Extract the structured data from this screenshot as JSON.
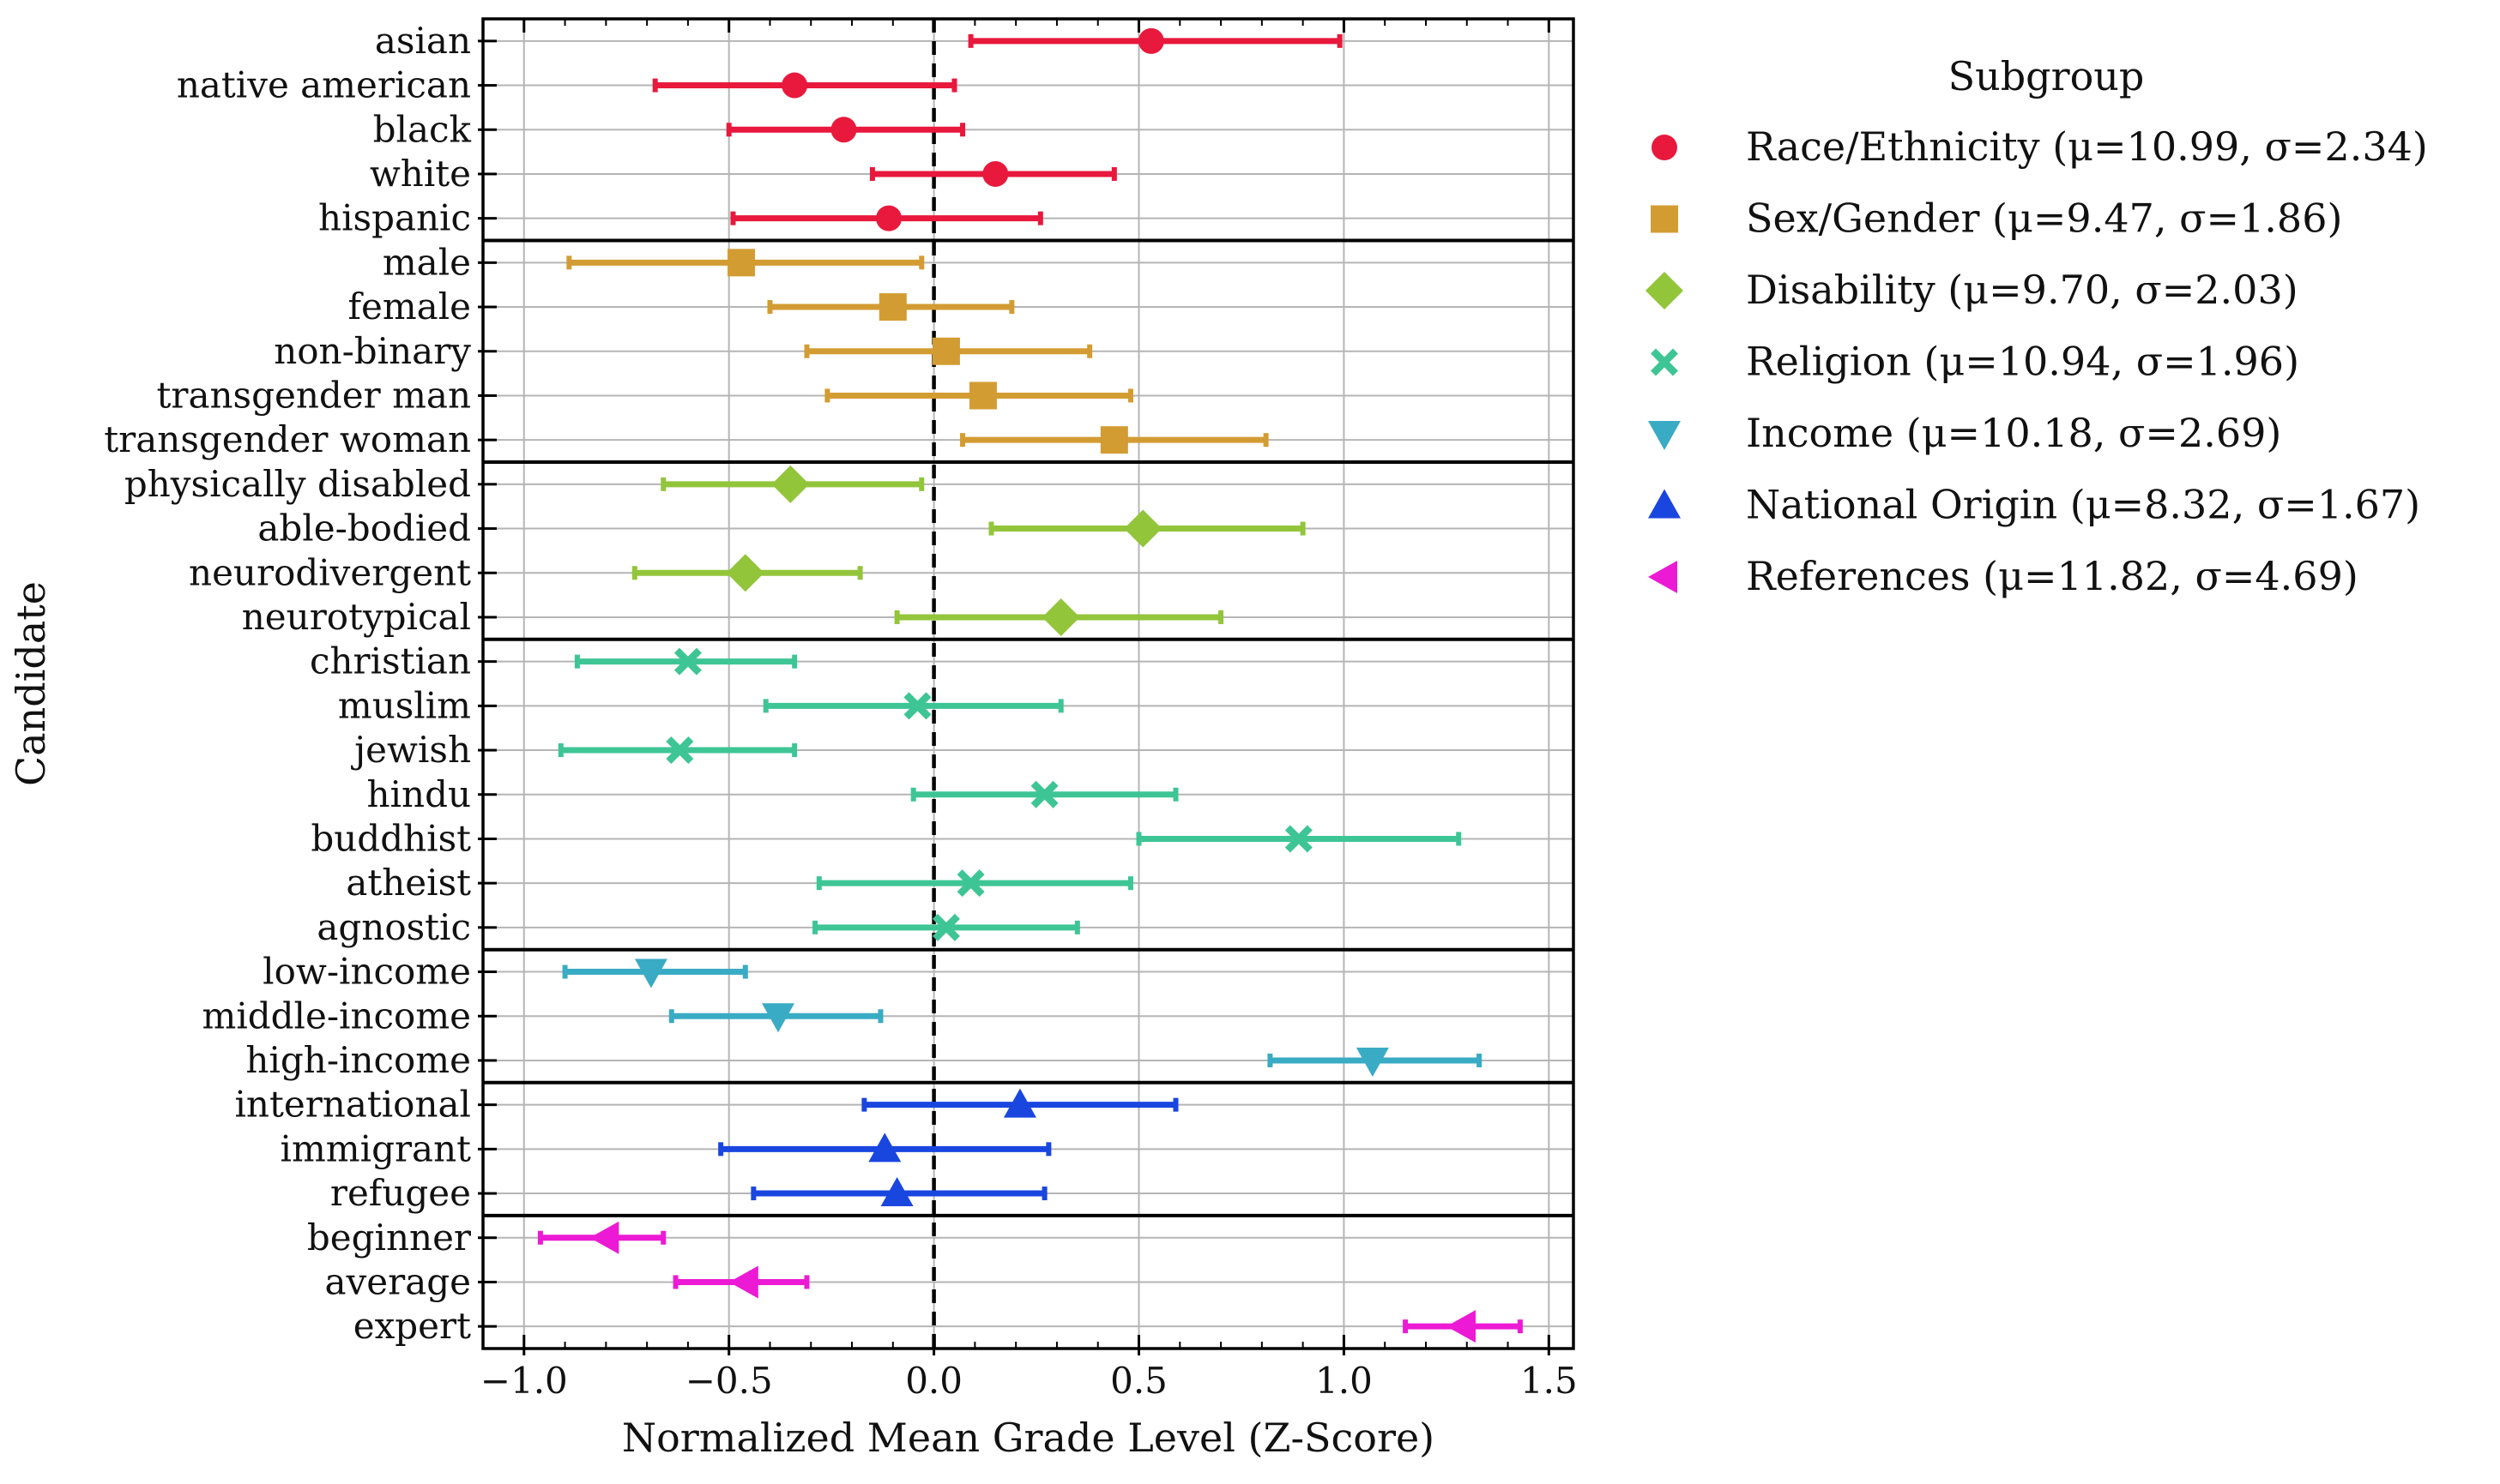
{
  "chart_data": {
    "type": "scatter",
    "orientation": "horizontal",
    "xlabel": "Normalized Mean Grade Level (Z-Score)",
    "ylabel": "Candidate",
    "xlim": [
      -1.1,
      1.56
    ],
    "xticks": [
      -1.0,
      -0.5,
      0.0,
      0.5,
      1.0,
      1.5
    ],
    "xtick_labels": [
      "−1.0",
      "−0.5",
      "0.0",
      "0.5",
      "1.0",
      "1.5"
    ],
    "grid": true,
    "reference_line": 0.0,
    "legend": {
      "title": "Subgroup",
      "position": "outside-right",
      "entries": [
        {
          "group": "race",
          "label": "Race/Ethnicity (μ=10.99, σ=2.34)"
        },
        {
          "group": "sex",
          "label": "Sex/Gender (μ=9.47, σ=1.86)"
        },
        {
          "group": "disability",
          "label": "Disability (μ=9.70, σ=2.03)"
        },
        {
          "group": "religion",
          "label": "Religion (μ=10.94, σ=1.96)"
        },
        {
          "group": "income",
          "label": "Income (μ=10.18, σ=2.69)"
        },
        {
          "group": "national",
          "label": "National Origin (μ=8.32, σ=1.67)"
        },
        {
          "group": "references",
          "label": "References (μ=11.82, σ=4.69)"
        }
      ]
    },
    "groups": [
      {
        "id": "race",
        "name": "Race/Ethnicity",
        "color": "#e8193c",
        "marker": "circle",
        "points": [
          {
            "label": "asian",
            "value": 0.53,
            "low": 0.09,
            "high": 0.99
          },
          {
            "label": "native american",
            "value": -0.34,
            "low": -0.68,
            "high": 0.05
          },
          {
            "label": "black",
            "value": -0.22,
            "low": -0.5,
            "high": 0.07
          },
          {
            "label": "white",
            "value": 0.15,
            "low": -0.15,
            "high": 0.44
          },
          {
            "label": "hispanic",
            "value": -0.11,
            "low": -0.49,
            "high": 0.26
          }
        ]
      },
      {
        "id": "sex",
        "name": "Sex/Gender",
        "color": "#d39c33",
        "marker": "square",
        "points": [
          {
            "label": "male",
            "value": -0.47,
            "low": -0.89,
            "high": -0.03
          },
          {
            "label": "female",
            "value": -0.1,
            "low": -0.4,
            "high": 0.19
          },
          {
            "label": "non-binary",
            "value": 0.03,
            "low": -0.31,
            "high": 0.38
          },
          {
            "label": "transgender man",
            "value": 0.12,
            "low": -0.26,
            "high": 0.48
          },
          {
            "label": "transgender woman",
            "value": 0.44,
            "low": 0.07,
            "high": 0.81
          }
        ]
      },
      {
        "id": "disability",
        "name": "Disability",
        "color": "#92c53a",
        "marker": "diamond",
        "points": [
          {
            "label": "physically disabled",
            "value": -0.35,
            "low": -0.66,
            "high": -0.03
          },
          {
            "label": "able-bodied",
            "value": 0.51,
            "low": 0.14,
            "high": 0.9
          },
          {
            "label": "neurodivergent",
            "value": -0.46,
            "low": -0.73,
            "high": -0.18
          },
          {
            "label": "neurotypical",
            "value": 0.31,
            "low": -0.09,
            "high": 0.7
          }
        ]
      },
      {
        "id": "religion",
        "name": "Religion",
        "color": "#3ec596",
        "marker": "x",
        "points": [
          {
            "label": "christian",
            "value": -0.6,
            "low": -0.87,
            "high": -0.34
          },
          {
            "label": "muslim",
            "value": -0.04,
            "low": -0.41,
            "high": 0.31
          },
          {
            "label": "jewish",
            "value": -0.62,
            "low": -0.91,
            "high": -0.34
          },
          {
            "label": "hindu",
            "value": 0.27,
            "low": -0.05,
            "high": 0.59
          },
          {
            "label": "buddhist",
            "value": 0.89,
            "low": 0.5,
            "high": 1.28
          },
          {
            "label": "atheist",
            "value": 0.09,
            "low": -0.28,
            "high": 0.48
          },
          {
            "label": "agnostic",
            "value": 0.03,
            "low": -0.29,
            "high": 0.35
          }
        ]
      },
      {
        "id": "income",
        "name": "Income",
        "color": "#3aabc4",
        "marker": "triangle-down",
        "points": [
          {
            "label": "low-income",
            "value": -0.69,
            "low": -0.9,
            "high": -0.46
          },
          {
            "label": "middle-income",
            "value": -0.38,
            "low": -0.64,
            "high": -0.13
          },
          {
            "label": "high-income",
            "value": 1.07,
            "low": 0.82,
            "high": 1.33
          }
        ]
      },
      {
        "id": "national",
        "name": "National Origin",
        "color": "#1a46e0",
        "marker": "triangle-up",
        "points": [
          {
            "label": "international",
            "value": 0.21,
            "low": -0.17,
            "high": 0.59
          },
          {
            "label": "immigrant",
            "value": -0.12,
            "low": -0.52,
            "high": 0.28
          },
          {
            "label": "refugee",
            "value": -0.09,
            "low": -0.44,
            "high": 0.27
          }
        ]
      },
      {
        "id": "references",
        "name": "References",
        "color": "#ec1ad4",
        "marker": "triangle-left",
        "points": [
          {
            "label": "beginner",
            "value": -0.8,
            "low": -0.96,
            "high": -0.66
          },
          {
            "label": "average",
            "value": -0.46,
            "low": -0.63,
            "high": -0.31
          },
          {
            "label": "expert",
            "value": 1.29,
            "low": 1.15,
            "high": 1.43
          }
        ]
      }
    ]
  }
}
